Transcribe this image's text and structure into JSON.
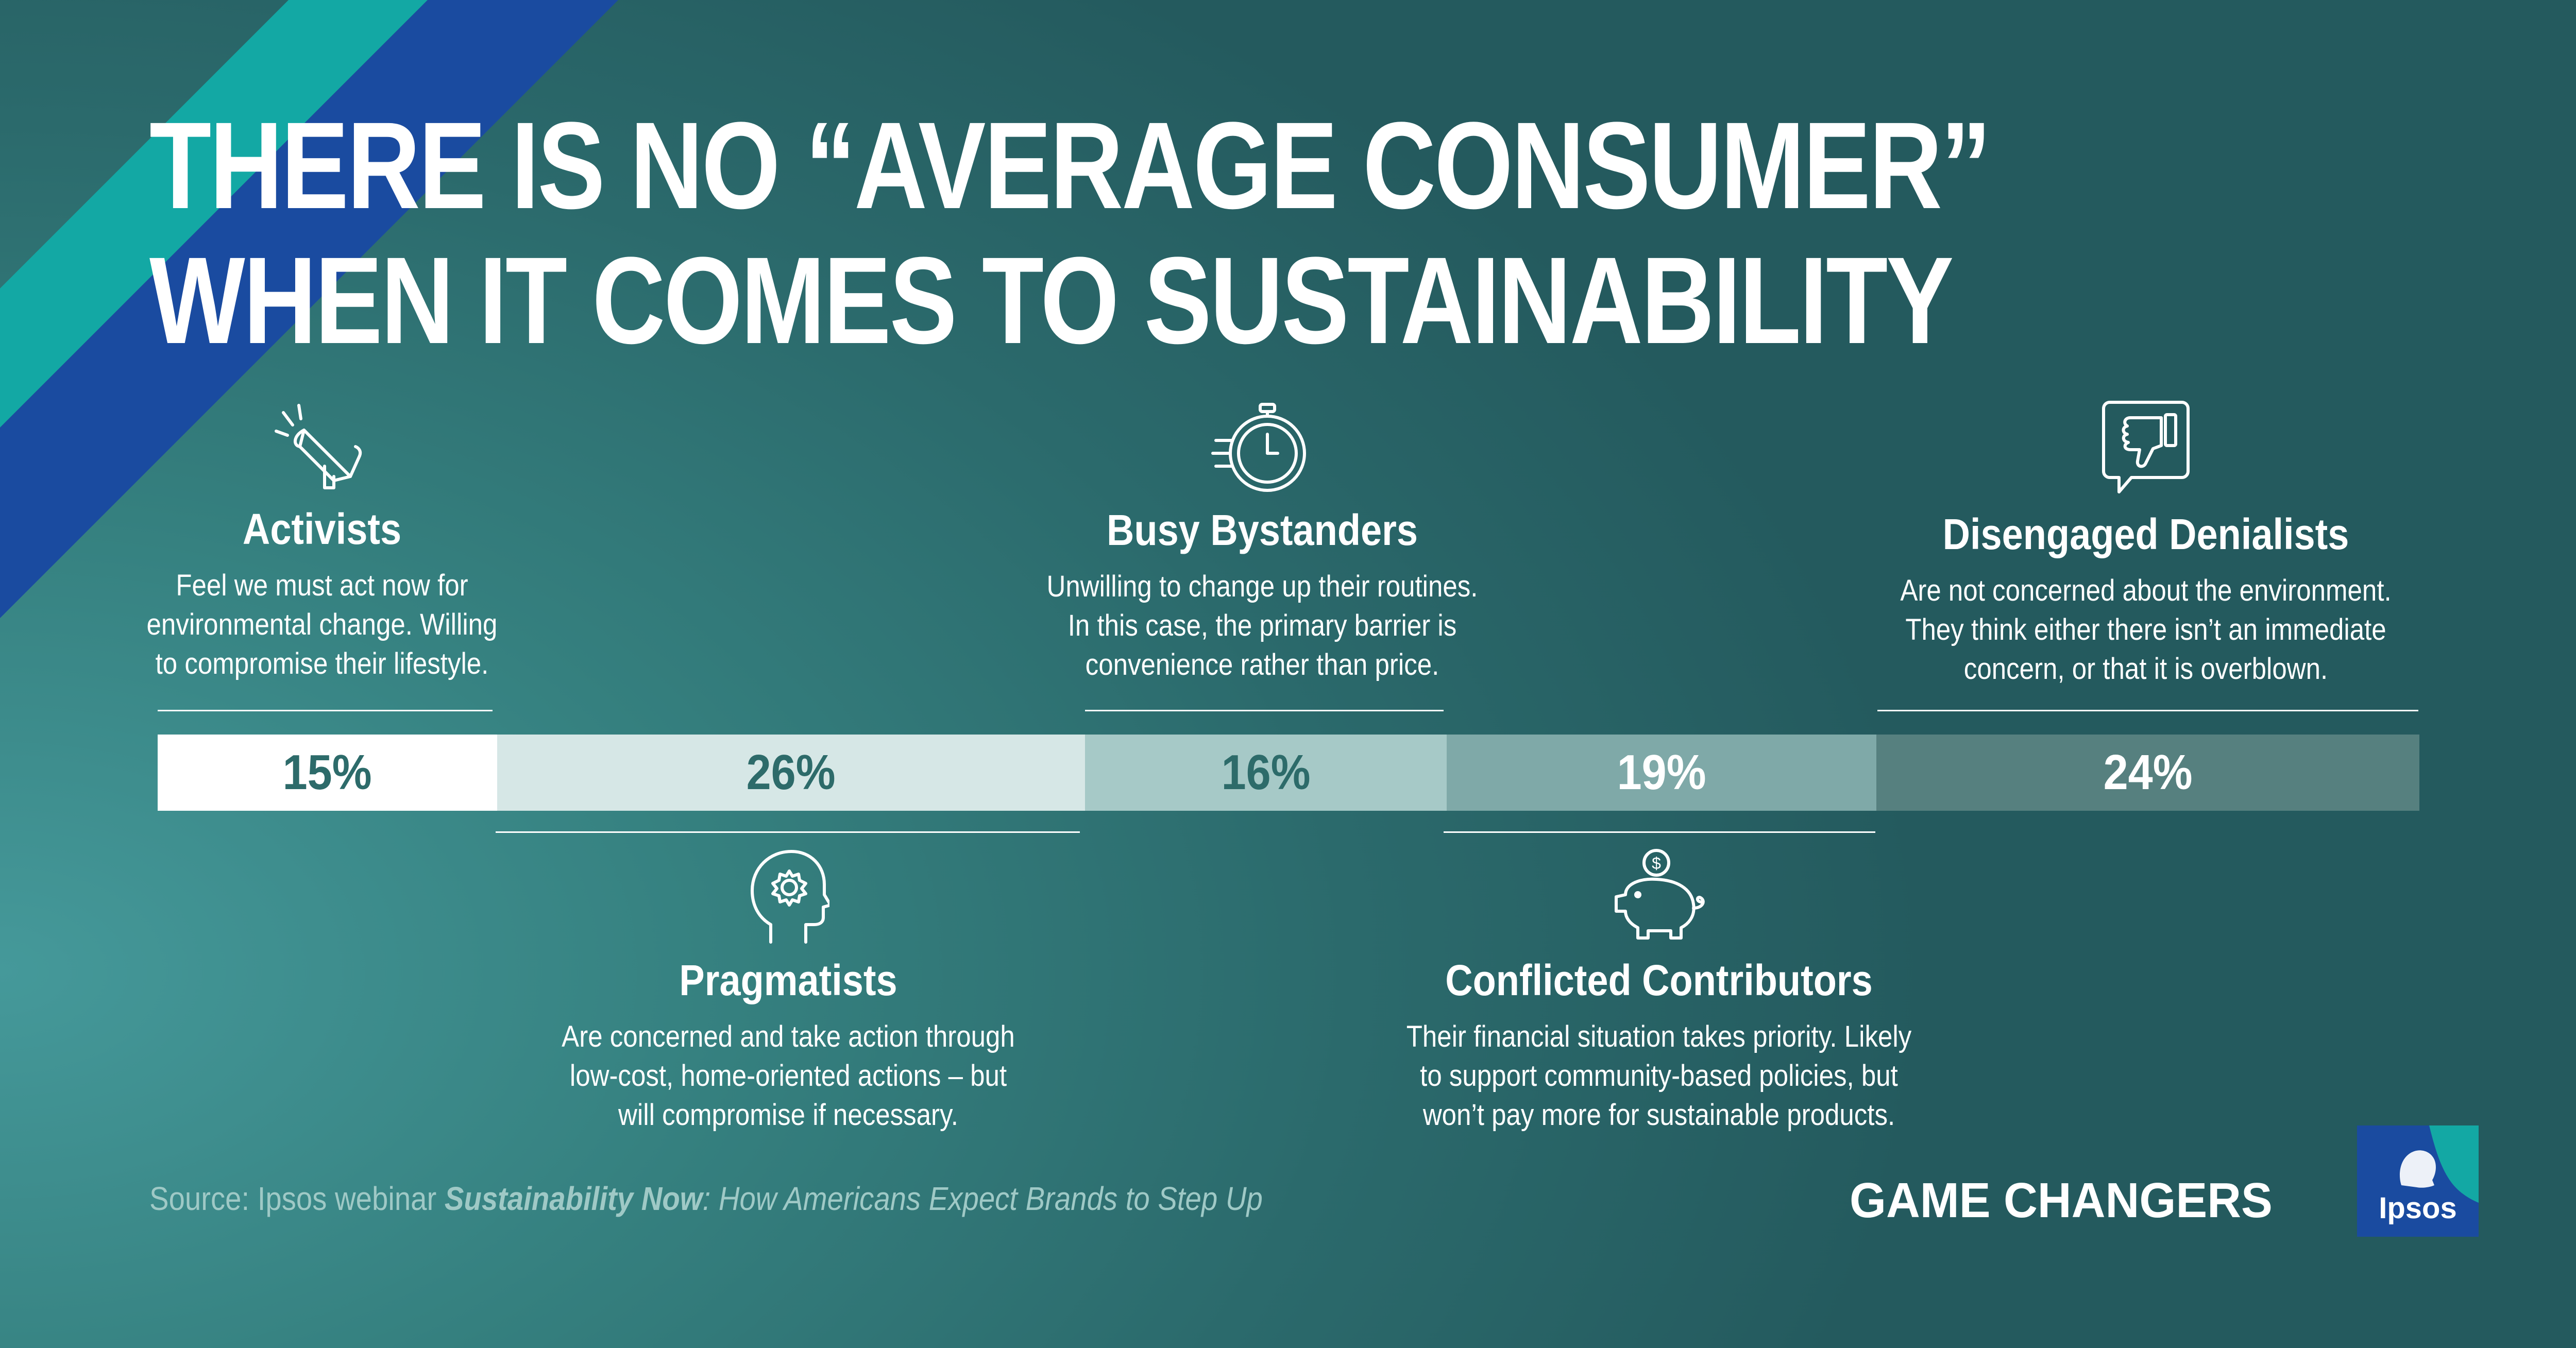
{
  "title_lines": [
    "THERE IS NO “AVERAGE CONSUMER”",
    "WHEN IT COMES TO SUSTAINABILITY"
  ],
  "segments": [
    {
      "name": "Activists",
      "description": "Feel we must act now for\nenvironmental change. Willing\nto compromise their lifestyle.",
      "icon": "megaphone-icon"
    },
    {
      "name": "Pragmatists",
      "description": "Are concerned and take action through\nlow-cost, home-oriented actions – but\nwill compromise if necessary.",
      "icon": "head-gear-icon"
    },
    {
      "name": "Busy Bystanders",
      "description": "Unwilling to change up their routines.\nIn this case, the primary barrier is\nconvenience rather than price.",
      "icon": "stopwatch-icon"
    },
    {
      "name": "Conflicted Contributors",
      "description": "Their financial situation takes priority. Likely\nto support community-based policies, but\nwon’t pay more for sustainable products.",
      "icon": "piggy-bank-icon"
    },
    {
      "name": "Disengaged Denialists",
      "description": "Are not concerned about the environment.\nThey think either there isn’t an immediate\nconcern, or that it is overblown.",
      "icon": "thumbs-down-icon"
    }
  ],
  "chart_data": {
    "type": "bar",
    "orientation": "horizontal-stacked",
    "title": "THERE IS NO “AVERAGE CONSUMER” WHEN IT COMES TO SUSTAINABILITY",
    "categories": [
      "Activists",
      "Pragmatists",
      "Busy Bystanders",
      "Conflicted Contributors",
      "Disengaged Denialists"
    ],
    "values": [
      15,
      26,
      16,
      19,
      24
    ],
    "labels": [
      "15%",
      "26%",
      "16%",
      "19%",
      "24%"
    ],
    "unit": "%",
    "colors": [
      "#ffffff",
      "#d6e7e6",
      "#a6c9c7",
      "#7fa9a8",
      "#56807f"
    ],
    "label_colors": [
      "#2d6b6a",
      "#2d6b6a",
      "#2d6b6a",
      "#ffffff",
      "#ffffff"
    ]
  },
  "source": {
    "prefix": "Source: Ipsos webinar ",
    "bold_title": "Sustainability Now",
    "suffix": ": How Americans Expect Brands to Step Up"
  },
  "brand": "GAME CHANGERS",
  "logo_text": "Ipsos",
  "colors": {
    "stripe_teal": "#13a8a4",
    "stripe_blue": "#1a4ba0",
    "logo_blue": "#1a4ba0",
    "logo_accent": "#13a8a4"
  }
}
